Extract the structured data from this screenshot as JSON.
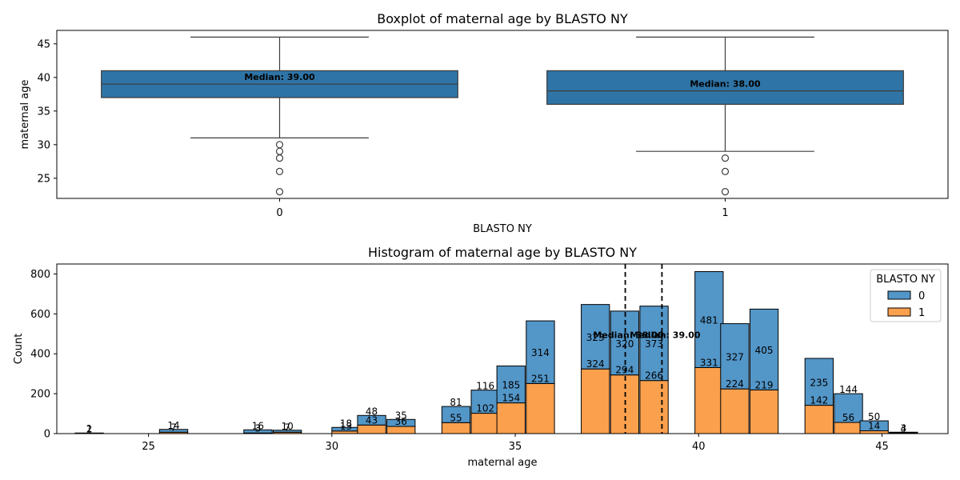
{
  "chart_data": [
    {
      "type": "box",
      "title": "Boxplot of maternal age by BLASTO NY",
      "xlabel": "BLASTO NY",
      "ylabel": "maternal age",
      "ylim": [
        22,
        47
      ],
      "yticks": [
        25,
        30,
        35,
        40,
        45
      ],
      "categories": [
        "0",
        "1"
      ],
      "boxes": [
        {
          "category": "0",
          "whisker_low": 31,
          "q1": 37,
          "median": 39,
          "q3": 41,
          "whisker_high": 46,
          "outliers": [
            30,
            29,
            28,
            26,
            23
          ],
          "median_label": "Median: 39.00"
        },
        {
          "category": "1",
          "whisker_low": 29,
          "q1": 36,
          "median": 38,
          "q3": 41,
          "whisker_high": 46,
          "outliers": [
            28,
            26,
            23
          ],
          "median_label": "Median: 38.00"
        }
      ],
      "color": "#2f74a6"
    },
    {
      "type": "bar",
      "stacked": true,
      "title": "Histogram of maternal age by BLASTO NY",
      "xlabel": "maternal age",
      "ylabel": "Count",
      "xlim": [
        22.5,
        46.8
      ],
      "ylim": [
        0,
        850
      ],
      "xticks": [
        25,
        30,
        35,
        40,
        45
      ],
      "yticks": [
        0,
        200,
        400,
        600,
        800
      ],
      "bin_width": 0.77,
      "legend": {
        "title": "BLASTO NY",
        "position": "top-right"
      },
      "bins": [
        23.0,
        25.3,
        27.6,
        28.4,
        30.0,
        30.7,
        31.5,
        33.0,
        33.8,
        34.5,
        35.3,
        36.8,
        37.6,
        38.4,
        39.9,
        40.6,
        41.4,
        42.9,
        43.7,
        44.4,
        45.2
      ],
      "series": [
        {
          "name": "0",
          "color": "#5396c8",
          "values": [
            2,
            14,
            16,
            10,
            18,
            48,
            35,
            81,
            116,
            185,
            314,
            323,
            320,
            373,
            481,
            327,
            405,
            235,
            144,
            50,
            4
          ]
        },
        {
          "name": "1",
          "color": "#fba04d",
          "values": [
            1,
            7,
            3,
            7,
            13,
            43,
            36,
            55,
            102,
            154,
            251,
            324,
            294,
            266,
            331,
            224,
            219,
            142,
            56,
            14,
            3
          ]
        }
      ],
      "medians": [
        {
          "value": 38.0,
          "label": "Median: 38.00"
        },
        {
          "value": 39.0,
          "label": "Median: 39.00"
        }
      ]
    }
  ]
}
